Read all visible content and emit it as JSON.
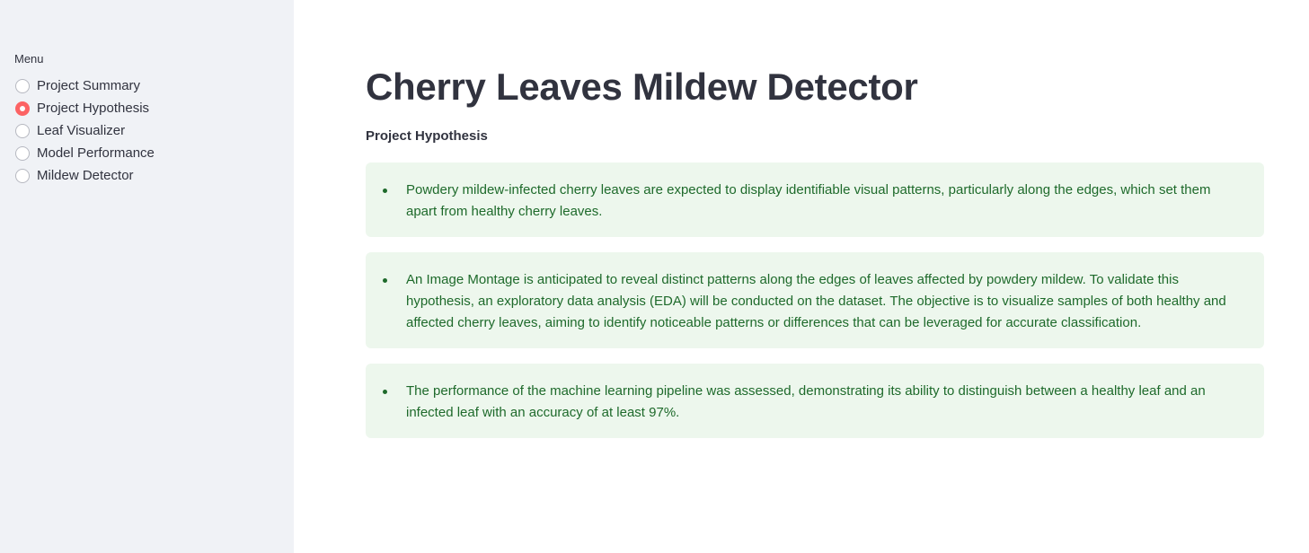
{
  "sidebar": {
    "menu_label": "Menu",
    "items": [
      {
        "label": "Project Summary",
        "selected": false
      },
      {
        "label": "Project Hypothesis",
        "selected": true
      },
      {
        "label": "Leaf Visualizer",
        "selected": false
      },
      {
        "label": "Model Performance",
        "selected": false
      },
      {
        "label": "Mildew Detector",
        "selected": false
      }
    ]
  },
  "main": {
    "title": "Cherry Leaves Mildew Detector",
    "subheader": "Project Hypothesis",
    "hypotheses": [
      "Powdery mildew-infected cherry leaves are expected to display identifiable visual patterns, particularly along the edges, which set them apart from healthy cherry leaves.",
      "An Image Montage is anticipated to reveal distinct patterns along the edges of leaves affected by powdery mildew. To validate this hypothesis, an exploratory data analysis (EDA) will be conducted on the dataset. The objective is to visualize samples of both healthy and affected cherry leaves, aiming to identify noticeable patterns or differences that can be leveraged for accurate classification.",
      "The performance of the machine learning pipeline was assessed, demonstrating its ability to distinguish between a healthy leaf and an infected leaf with an accuracy of at least 97%."
    ]
  },
  "colors": {
    "sidebar_bg": "#f0f2f6",
    "accent": "#ff4b4b",
    "success_bg": "#edf7ed",
    "success_text": "#1e6a2b",
    "text": "#31333f"
  }
}
